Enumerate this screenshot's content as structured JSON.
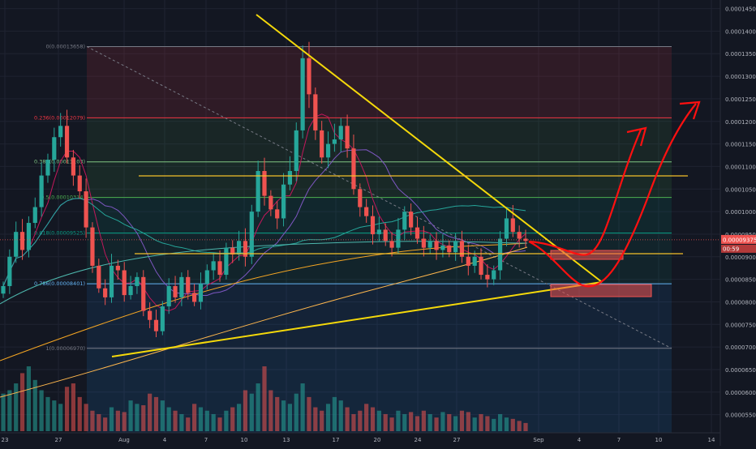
{
  "theme": {
    "background": "#131722",
    "grid": "#1f2331",
    "axis_text": "#b2b5be",
    "candle_up": "#26a69a",
    "candle_down": "#ef5350",
    "trendline": "#f5d90a",
    "horizontal_level": "#f5c02a",
    "annotation": "#ff1010"
  },
  "price_axis": {
    "ticks": [
      "0.00014500",
      "0.00014000",
      "0.00013500",
      "0.00013000",
      "0.00012500",
      "0.00012000",
      "0.00011500",
      "0.00011000",
      "0.00010500",
      "0.00010000",
      "0.00009500",
      "0.00009000",
      "0.00008500",
      "0.00008000",
      "0.00007500",
      "0.00007000",
      "0.00006500",
      "0.00006000",
      "0.00005500"
    ],
    "current_price_label": "0.00009375",
    "countdown_label": "00:59"
  },
  "time_axis": {
    "labels": [
      "23",
      "27",
      "Aug",
      "4",
      "7",
      "10",
      "13",
      "17",
      "20",
      "24",
      "27",
      "Sep",
      "4",
      "7",
      "10",
      "14"
    ]
  },
  "fibonacci": {
    "levels": [
      {
        "label": "0(0.00013658)",
        "price": 0.00013658,
        "color": "#787b86"
      },
      {
        "label": "0.236(0.00012079)",
        "price": 0.00012079,
        "color": "#f23645"
      },
      {
        "label": "0.382(0.00011103)",
        "price": 0.00011103,
        "color": "#81c784"
      },
      {
        "label": "0.5(0.00010314)",
        "price": 0.00010314,
        "color": "#4caf50"
      },
      {
        "label": "0.618(0.00009525)",
        "price": 9.525e-05,
        "color": "#089981"
      },
      {
        "label": "0.786(0.00008401)",
        "price": 8.401e-05,
        "color": "#64b5f6"
      },
      {
        "label": "1(0.00006970)",
        "price": 6.97e-05,
        "color": "#787b86"
      }
    ]
  },
  "chart_data": {
    "type": "candlestick",
    "title": "",
    "xlabel": "",
    "ylabel": "",
    "ylim": [
      5.35e-05,
      0.000146
    ],
    "grid": true,
    "price_series": [
      8.35e-05,
      9e-05,
      9.55e-05,
      9.15e-05,
      9.75e-05,
      0.000101,
      0.000108,
      0.0001115,
      0.0001165,
      0.000119,
      0.000112,
      0.000108,
      0.0001045,
      9.65e-05,
      8.8e-05,
      8.3e-05,
      8.1e-05,
      8.8e-05,
      8.7e-05,
      8.15e-05,
      8.35e-05,
      8.55e-05,
      7.8e-05,
      7.6e-05,
      7.35e-05,
      7.9e-05,
      8.35e-05,
      8.1e-05,
      8.55e-05,
      8.2e-05,
      8e-05,
      8.4e-05,
      8.7e-05,
      8.9e-05,
      8.6e-05,
      9.2e-05,
      9.05e-05,
      9.35e-05,
      9e-05,
      0.0001,
      0.000109,
      0.0001035,
      0.0001005,
      9.85e-05,
      0.000106,
      0.000109,
      0.000118,
      0.000134,
      0.000126,
      0.000118,
      0.000112,
      0.000115,
      0.000116,
      0.000119,
      0.000114,
      0.000105,
      0.000101,
      9.9e-05,
      9.5e-05,
      9.6e-05,
      9.35e-05,
      9.2e-05,
      9.6e-05,
      0.0001,
      9.65e-05,
      9.4e-05,
      9.2e-05,
      9.35e-05,
      9.15e-05,
      9.25e-05,
      9.1e-05,
      9.35e-05,
      9e-05,
      8.8e-05,
      9e-05,
      8.6e-05,
      8.5e-05,
      8.7e-05,
      9.4e-05,
      9.85e-05,
      9.55e-05,
      9.4e-05,
      9.35e-05
    ],
    "volume_series": [
      55,
      60,
      70,
      85,
      95,
      75,
      60,
      50,
      45,
      40,
      65,
      70,
      50,
      40,
      30,
      25,
      20,
      35,
      30,
      28,
      45,
      40,
      38,
      55,
      50,
      45,
      35,
      30,
      25,
      20,
      40,
      35,
      30,
      25,
      20,
      30,
      35,
      40,
      60,
      55,
      70,
      95,
      60,
      50,
      45,
      40,
      55,
      70,
      50,
      35,
      30,
      40,
      50,
      45,
      35,
      25,
      30,
      40,
      35,
      30,
      25,
      20,
      30,
      25,
      28,
      22,
      30,
      25,
      20,
      28,
      25,
      22,
      30,
      28,
      20,
      25,
      22,
      18,
      25,
      20,
      18,
      15,
      12
    ]
  },
  "annotations": {
    "trendline_count": 4,
    "horizontal_levels": 2,
    "target_boxes": 2,
    "projection_arrows": 2
  }
}
